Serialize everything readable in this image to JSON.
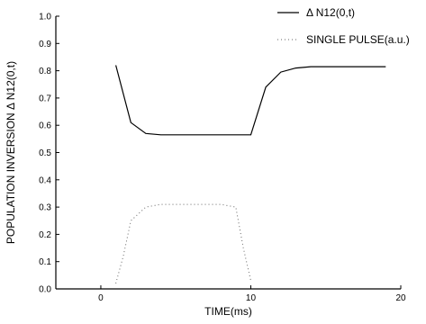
{
  "chart_data": {
    "type": "line",
    "title": "",
    "xlabel": "TIME(ms)",
    "ylabel": "POPULATION INVERSION Δ  N12(0,t)",
    "xlim": [
      -3,
      20
    ],
    "ylim": [
      0,
      1.0
    ],
    "xticks": [
      0,
      10,
      20
    ],
    "yticks": [
      0.0,
      0.1,
      0.2,
      0.3,
      0.4,
      0.5,
      0.6,
      0.7,
      0.8,
      0.9,
      1.0
    ],
    "ytick_labels": [
      "0.0",
      "0.1",
      "0.2",
      "0.3",
      "0.4",
      "0.5",
      "0.6",
      "0.7",
      "0.8",
      "0.9",
      "1.0"
    ],
    "legend_position": "top-right",
    "series": [
      {
        "name": "Δ  N12(0,t)",
        "style": "solid",
        "color": "#000000",
        "x": [
          1,
          2,
          3,
          4,
          5,
          6,
          7,
          8,
          9,
          10,
          11,
          12,
          13,
          14,
          15,
          16,
          17,
          18,
          19
        ],
        "y": [
          0.82,
          0.61,
          0.57,
          0.565,
          0.565,
          0.565,
          0.565,
          0.565,
          0.565,
          0.565,
          0.74,
          0.795,
          0.81,
          0.815,
          0.815,
          0.815,
          0.815,
          0.815,
          0.815
        ]
      },
      {
        "name": "SINGLE PULSE(a.u.)",
        "style": "dotted",
        "color": "#666666",
        "x": [
          1,
          1.5,
          2,
          3,
          4,
          5,
          6,
          7,
          8,
          9,
          9.5,
          10
        ],
        "y": [
          0.02,
          0.12,
          0.25,
          0.3,
          0.31,
          0.31,
          0.31,
          0.31,
          0.31,
          0.3,
          0.15,
          0.03
        ]
      }
    ]
  }
}
